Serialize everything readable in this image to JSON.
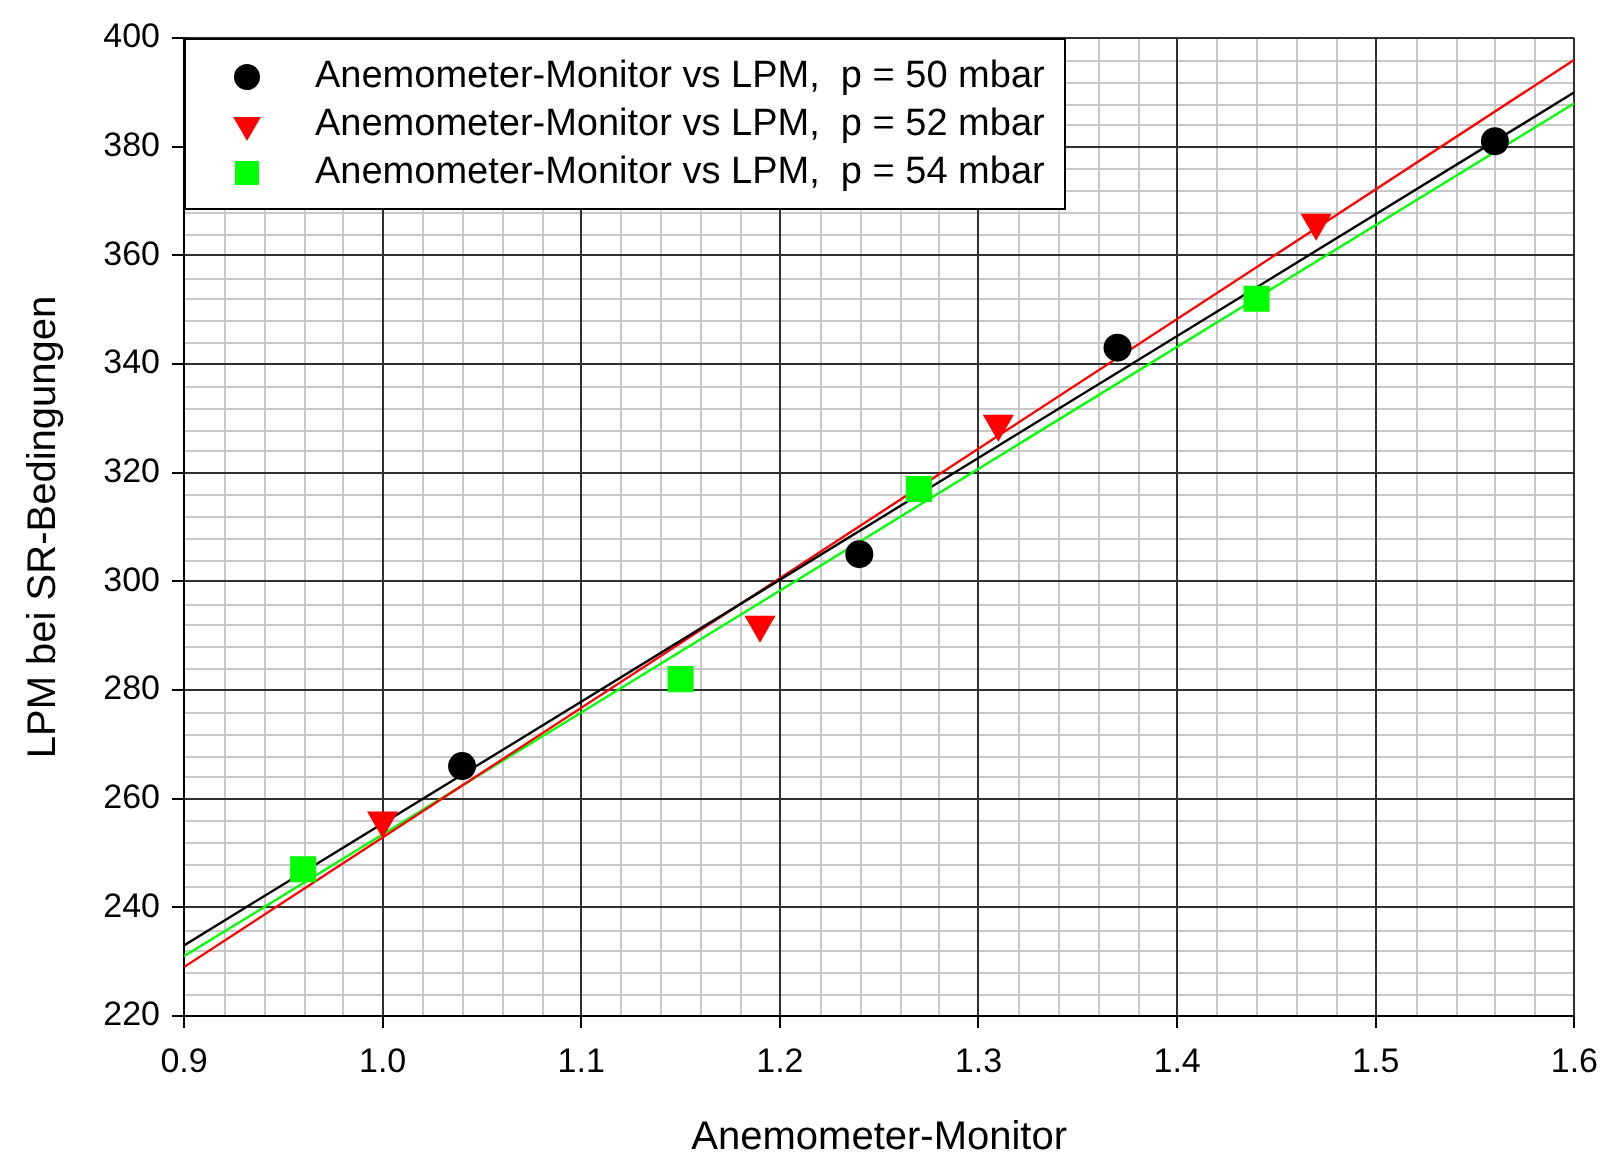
{
  "chart_data": {
    "type": "scatter",
    "xlabel": "Anemometer-Monitor",
    "ylabel": "LPM bei SR-Bedingungen",
    "xlim": [
      0.9,
      1.6
    ],
    "xticks": [
      0.9,
      {
        "value": 1,
        "label": "1.0"
      },
      1.1,
      1.2,
      1.3,
      1.4,
      1.5,
      1.6
    ],
    "ylim": [
      220,
      400
    ],
    "yticks": [
      220,
      240,
      260,
      280,
      300,
      320,
      340,
      360,
      380,
      400
    ],
    "grid": true,
    "legend": "top left",
    "series": [
      {
        "name": "Anemometer-Monitor vs LPM,  p = 50 mbar",
        "color": "#000000",
        "marker": "circle",
        "x": [
          1.04,
          1.24,
          1.37,
          1.56
        ],
        "values": [
          266,
          305,
          343,
          381
        ]
      },
      {
        "name": "Anemometer-Monitor vs LPM,  p = 52 mbar",
        "color": "#ff0000",
        "marker": "triangle",
        "x": [
          1.0,
          1.19,
          1.31,
          1.47
        ],
        "values": [
          256,
          292,
          329,
          366
        ]
      },
      {
        "name": "Anemometer-Monitor vs LPM,  p = 54 mbar",
        "color": "#00ff00",
        "marker": "square",
        "x": [
          0.96,
          1.15,
          1.27,
          1.44
        ],
        "values": [
          247,
          282,
          317,
          352
        ]
      },
      {
        "type": "line",
        "color": "#000000",
        "x": [
          0.9,
          1.6
        ],
        "values": [
          233,
          390
        ]
      },
      {
        "type": "line",
        "color": "#ff0000",
        "x": [
          0.9,
          1.6
        ],
        "values": [
          229,
          396
        ]
      },
      {
        "type": "line",
        "color": "#00ff00",
        "x": [
          0.9,
          1.6
        ],
        "values": [
          231,
          388
        ]
      }
    ]
  }
}
